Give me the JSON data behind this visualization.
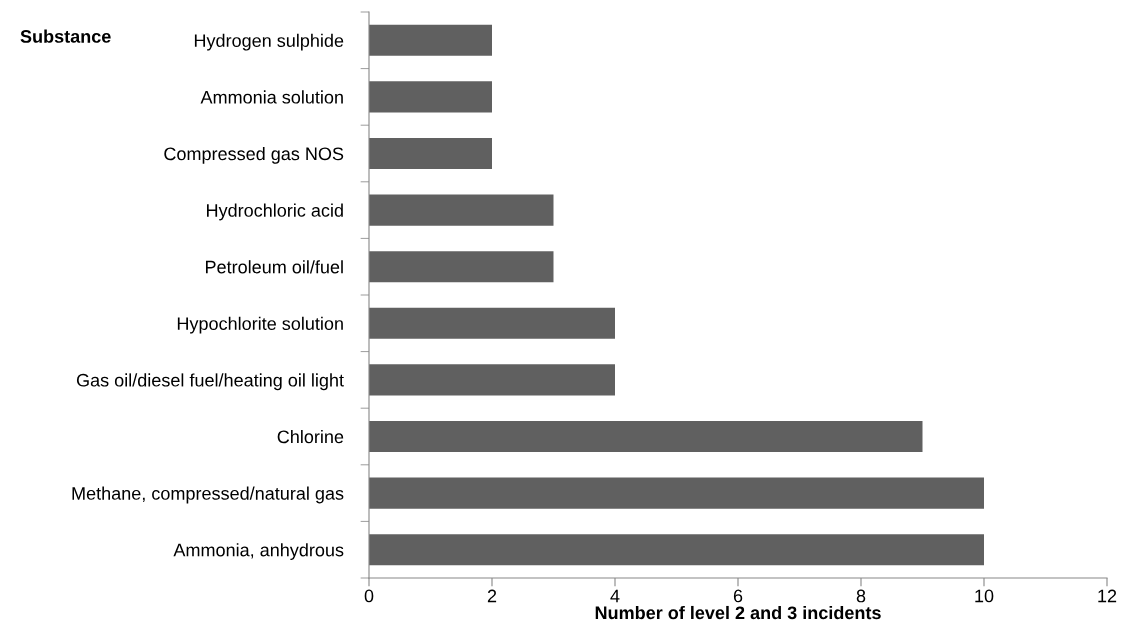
{
  "chart_data": {
    "type": "bar",
    "orientation": "horizontal",
    "ylabel": "Substance",
    "xlabel": "Number of level 2 and 3 incidents",
    "categories": [
      "Hydrogen sulphide",
      "Ammonia solution",
      "Compressed gas NOS",
      "Hydrochloric acid",
      "Petroleum oil/fuel",
      "Hypochlorite solution",
      "Gas oil/diesel fuel/heating oil light",
      "Chlorine",
      "Methane, compressed/natural gas",
      "Ammonia, anhydrous"
    ],
    "values": [
      2,
      2,
      2,
      3,
      3,
      4,
      4,
      9,
      10,
      10
    ],
    "color": "#606060",
    "xlim": [
      0,
      12
    ],
    "xticks": [
      0,
      2,
      4,
      6,
      8,
      10,
      12
    ],
    "grid": false,
    "legend": false
  }
}
